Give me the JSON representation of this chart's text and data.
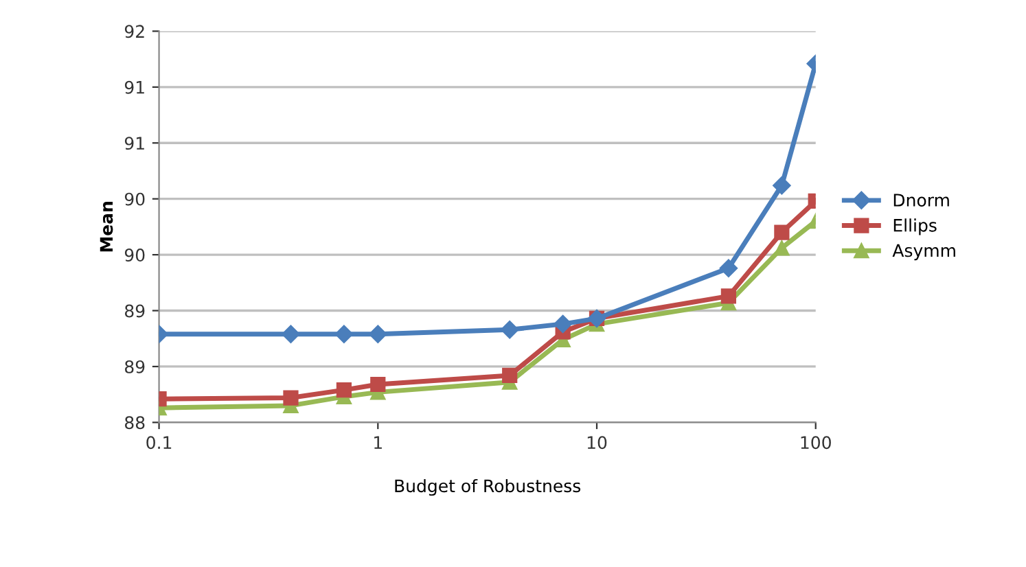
{
  "chart_data": {
    "type": "line",
    "xlabel": "Budget of Robustness",
    "ylabel": "Mean",
    "log": "x",
    "x": [
      0.1,
      0.4,
      0.7,
      1,
      4,
      7,
      10,
      40,
      70,
      100
    ],
    "xlim": [
      0.1,
      100
    ],
    "xticks": [
      0.1,
      1,
      10,
      100
    ],
    "ylim": [
      88,
      91.5
    ],
    "yticks": [
      88,
      {
        "value": 88.5,
        "label": "89"
      },
      89,
      {
        "value": 89.5,
        "label": "90"
      },
      90,
      {
        "value": 90.5,
        "label": "91"
      },
      91,
      {
        "value": 91.5,
        "label": "92"
      }
    ],
    "grid": "y",
    "legend": "right",
    "series": [
      {
        "name": "Dnorm",
        "color": "#4a7ebb",
        "marker": "diamond",
        "values": [
          88.79,
          88.79,
          88.79,
          88.79,
          88.83,
          88.88,
          88.93,
          89.38,
          90.12,
          91.21
        ]
      },
      {
        "name": "Ellips",
        "color": "#be4b48",
        "marker": "square",
        "values": [
          88.21,
          88.22,
          88.29,
          88.34,
          88.42,
          88.81,
          88.93,
          89.13,
          89.7,
          89.98
        ]
      },
      {
        "name": "Asymm",
        "color": "#98b954",
        "marker": "triangle",
        "values": [
          88.13,
          88.15,
          88.23,
          88.27,
          88.36,
          88.74,
          88.88,
          89.07,
          89.56,
          89.8
        ]
      }
    ]
  }
}
